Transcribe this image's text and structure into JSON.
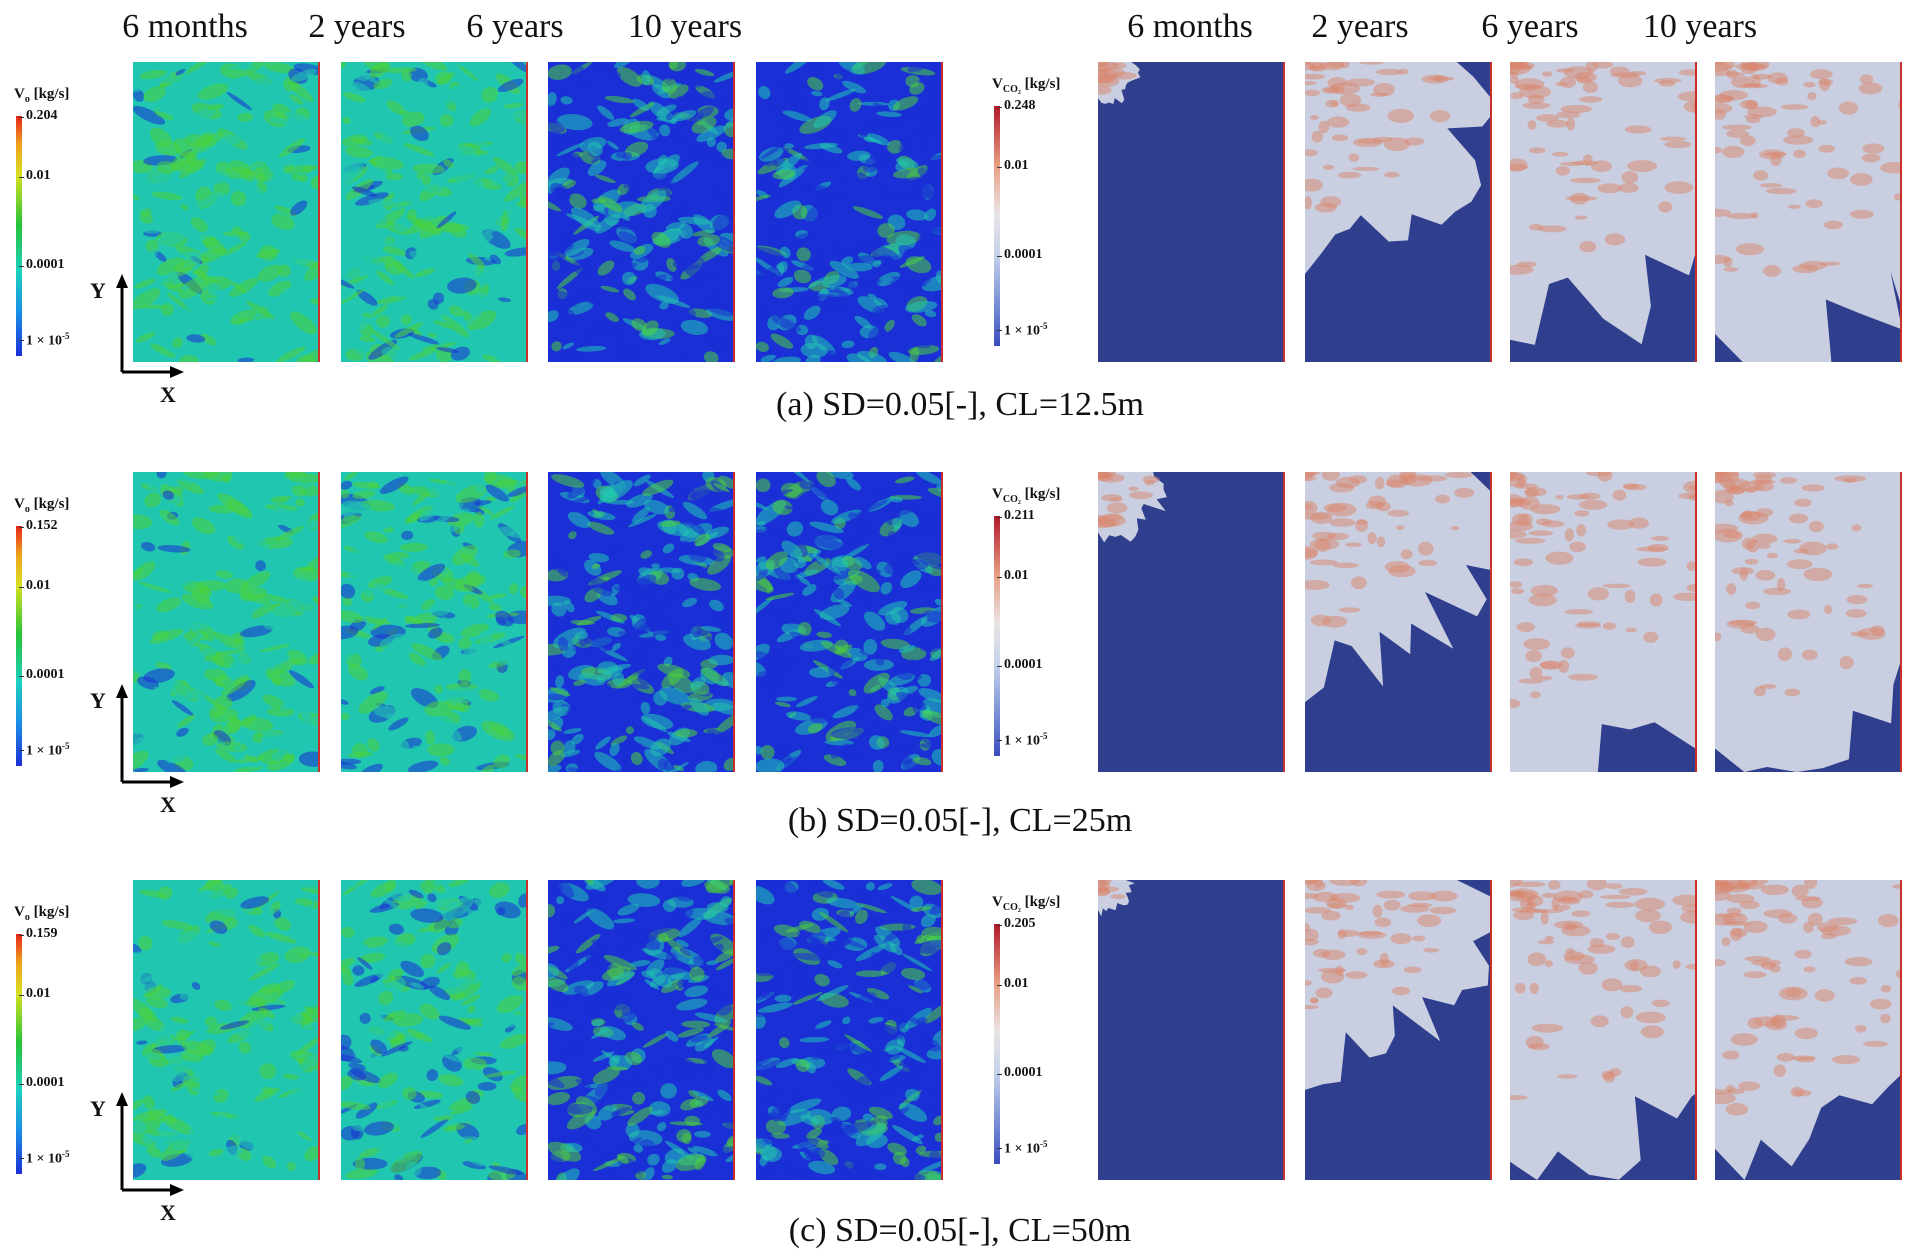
{
  "header": {
    "left_times": [
      "6 months",
      "2 years",
      "6 years",
      "10 years"
    ],
    "right_times": [
      "6 months",
      "2 years",
      "6 years",
      "10 years"
    ]
  },
  "rows": [
    {
      "id": "a",
      "caption": "(a) SD=0.05[-], CL=12.5m",
      "oil_colorbar": {
        "title": "V",
        "sub": "o",
        "unit": " [kg/s]",
        "ticks": [
          "0.204",
          "0.01",
          "0.0001",
          "1 × 10"
        ],
        "min_exp": "-5"
      },
      "co2_colorbar": {
        "title": "V",
        "sub": "CO₂",
        "unit": " [kg/s]",
        "ticks": [
          "0.248",
          "0.01",
          "0.0001",
          "1 × 10"
        ],
        "min_exp": "-5"
      },
      "oil_levels": [
        0.72,
        0.62,
        0.38,
        0.3
      ],
      "co2_extent": [
        0.12,
        0.55,
        0.8,
        0.88
      ]
    },
    {
      "id": "b",
      "caption": "(b) SD=0.05[-], CL=25m",
      "oil_colorbar": {
        "title": "V",
        "sub": "o",
        "unit": " [kg/s]",
        "ticks": [
          "0.152",
          "0.01",
          "0.0001",
          "1 × 10"
        ],
        "min_exp": "-5"
      },
      "co2_colorbar": {
        "title": "V",
        "sub": "CO₂",
        "unit": " [kg/s]",
        "ticks": [
          "0.211",
          "0.01",
          "0.0001",
          "1 × 10"
        ],
        "min_exp": "-5"
      },
      "oil_levels": [
        0.72,
        0.62,
        0.4,
        0.34
      ],
      "co2_extent": [
        0.2,
        0.6,
        0.88,
        0.9
      ]
    },
    {
      "id": "c",
      "caption": "(c) SD=0.05[-], CL=50m",
      "oil_colorbar": {
        "title": "V",
        "sub": "o",
        "unit": " [kg/s]",
        "ticks": [
          "0.159",
          "0.01",
          "0.0001",
          "1 × 10"
        ],
        "min_exp": "-5"
      },
      "co2_colorbar": {
        "title": "V",
        "sub": "CO₂",
        "unit": " [kg/s]",
        "ticks": [
          "0.205",
          "0.01",
          "0.0001",
          "1 × 10"
        ],
        "min_exp": "-5"
      },
      "oil_levels": [
        0.74,
        0.62,
        0.42,
        0.36
      ],
      "co2_extent": [
        0.1,
        0.55,
        0.82,
        0.88
      ]
    }
  ],
  "axes": {
    "x": "X",
    "y": "Y"
  },
  "colors": {
    "oil_low": "#1a2fd6",
    "oil_mid": "#21c6b0",
    "oil_high": "#4cd13a",
    "co2_background": "#2f3f8e",
    "co2_plume": "#d9866b",
    "co2_light": "#c9cfe0"
  }
}
